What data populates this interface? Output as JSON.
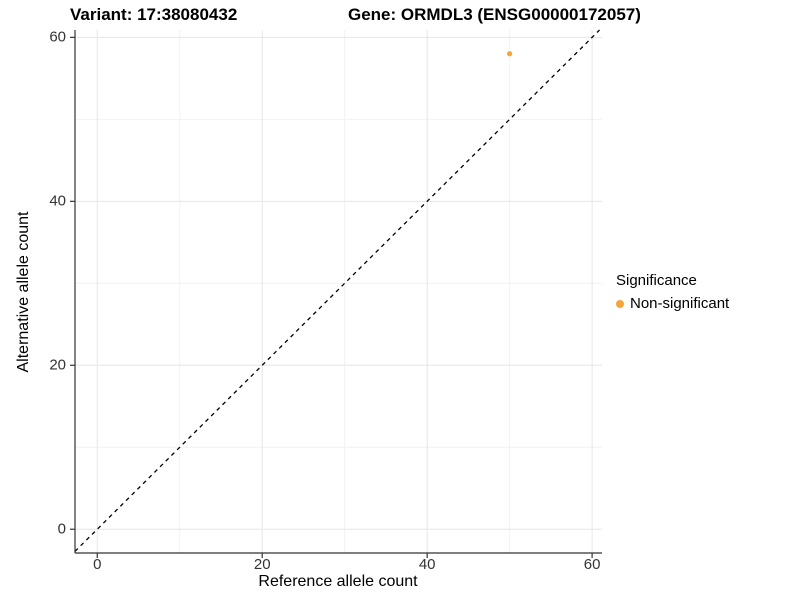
{
  "chart_data": {
    "type": "scatter",
    "titles": {
      "left": "Variant: 17:38080432",
      "right": "Gene: ORMDL3 (ENSG00000172057)"
    },
    "xlabel": "Reference allele count",
    "ylabel": "Alternative allele count",
    "xlim": [
      -2.7,
      61.2
    ],
    "ylim": [
      -2.9,
      60.9
    ],
    "xticks": [
      0,
      20,
      40,
      60
    ],
    "yticks": [
      0,
      20,
      40,
      60
    ],
    "xticks_minor": [
      10,
      30,
      50
    ],
    "yticks_minor": [
      10,
      30,
      50
    ],
    "grid": "on",
    "points": [
      {
        "x": 50,
        "y": 58,
        "series": "Non-significant"
      }
    ],
    "reference_line": {
      "kind": "identity",
      "slope": 1,
      "intercept": 0,
      "style": "dashed",
      "color": "#000000"
    },
    "legend": {
      "position": "right",
      "title": "Significance",
      "items": [
        {
          "label": "Non-significant",
          "color": "#F8A43C"
        }
      ]
    }
  },
  "colors": {
    "background": "#FFFFFF",
    "grid_major": "#E6E6E6",
    "grid_minor": "#F2F2F2",
    "axis": "#333333",
    "tick_text": "#333333",
    "point": "#F8A43C"
  }
}
